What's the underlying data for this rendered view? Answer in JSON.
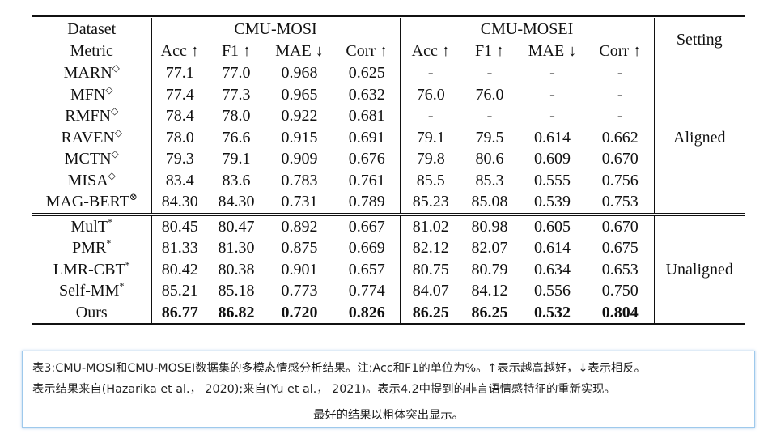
{
  "header": {
    "dataset_label": "Dataset",
    "metric_label": "Metric",
    "group_mosi": "CMU-MOSI",
    "group_mosei": "CMU-MOSEI",
    "setting_label": "Setting",
    "metrics": [
      "Acc ↑",
      "F1 ↑",
      "MAE ↓",
      "Corr ↑",
      "Acc ↑",
      "F1 ↑",
      "MAE ↓",
      "Corr ↑"
    ]
  },
  "aligned": {
    "setting": "Aligned",
    "rows": [
      {
        "model": "MARN",
        "mark": "◇",
        "vals": [
          "77.1",
          "77.0",
          "0.968",
          "0.625",
          "-",
          "-",
          "-",
          "-"
        ]
      },
      {
        "model": "MFN",
        "mark": "◇",
        "vals": [
          "77.4",
          "77.3",
          "0.965",
          "0.632",
          "76.0",
          "76.0",
          "-",
          "-"
        ]
      },
      {
        "model": "RMFN",
        "mark": "◇",
        "vals": [
          "78.4",
          "78.0",
          "0.922",
          "0.681",
          "-",
          "-",
          "-",
          "-"
        ]
      },
      {
        "model": "RAVEN",
        "mark": "◇",
        "vals": [
          "78.0",
          "76.6",
          "0.915",
          "0.691",
          "79.1",
          "79.5",
          "0.614",
          "0.662"
        ]
      },
      {
        "model": "MCTN",
        "mark": "◇",
        "vals": [
          "79.3",
          "79.1",
          "0.909",
          "0.676",
          "79.8",
          "80.6",
          "0.609",
          "0.670"
        ]
      },
      {
        "model": "MISA",
        "mark": "◇",
        "vals": [
          "83.4",
          "83.6",
          "0.783",
          "0.761",
          "85.5",
          "85.3",
          "0.555",
          "0.756"
        ]
      },
      {
        "model": "MAG-BERT",
        "mark": "⊗",
        "vals": [
          "84.30",
          "84.30",
          "0.731",
          "0.789",
          "85.23",
          "85.08",
          "0.539",
          "0.753"
        ]
      }
    ]
  },
  "unaligned": {
    "setting": "Unaligned",
    "rows": [
      {
        "model": "MulT",
        "mark": "*",
        "vals": [
          "80.45",
          "80.47",
          "0.892",
          "0.667",
          "81.02",
          "80.98",
          "0.605",
          "0.670"
        ]
      },
      {
        "model": "PMR",
        "mark": "*",
        "vals": [
          "81.33",
          "81.30",
          "0.875",
          "0.669",
          "82.12",
          "82.07",
          "0.614",
          "0.675"
        ]
      },
      {
        "model": "LMR-CBT",
        "mark": "*",
        "vals": [
          "80.42",
          "80.38",
          "0.901",
          "0.657",
          "80.75",
          "80.79",
          "0.634",
          "0.653"
        ]
      },
      {
        "model": "Self-MM",
        "mark": "*",
        "vals": [
          "85.21",
          "85.18",
          "0.773",
          "0.774",
          "84.07",
          "84.12",
          "0.556",
          "0.750"
        ]
      },
      {
        "model": "Ours",
        "mark": "",
        "vals": [
          "86.77",
          "86.82",
          "0.720",
          "0.826",
          "86.25",
          "86.25",
          "0.532",
          "0.804"
        ]
      }
    ]
  },
  "caption": {
    "line1": "表3:CMU-MOSI和CMU-MOSEI数据集的多模态情感分析结果。注:Acc和F1的单位为%。↑表示越高越好，↓表示相反。",
    "line2": "表示结果来自(Hazarika et al.， 2020);来自(Yu et al.， 2021)。表示4.2中提到的非言语情感特征的重新实现。",
    "line3": "最好的结果以粗体突出显示。"
  }
}
